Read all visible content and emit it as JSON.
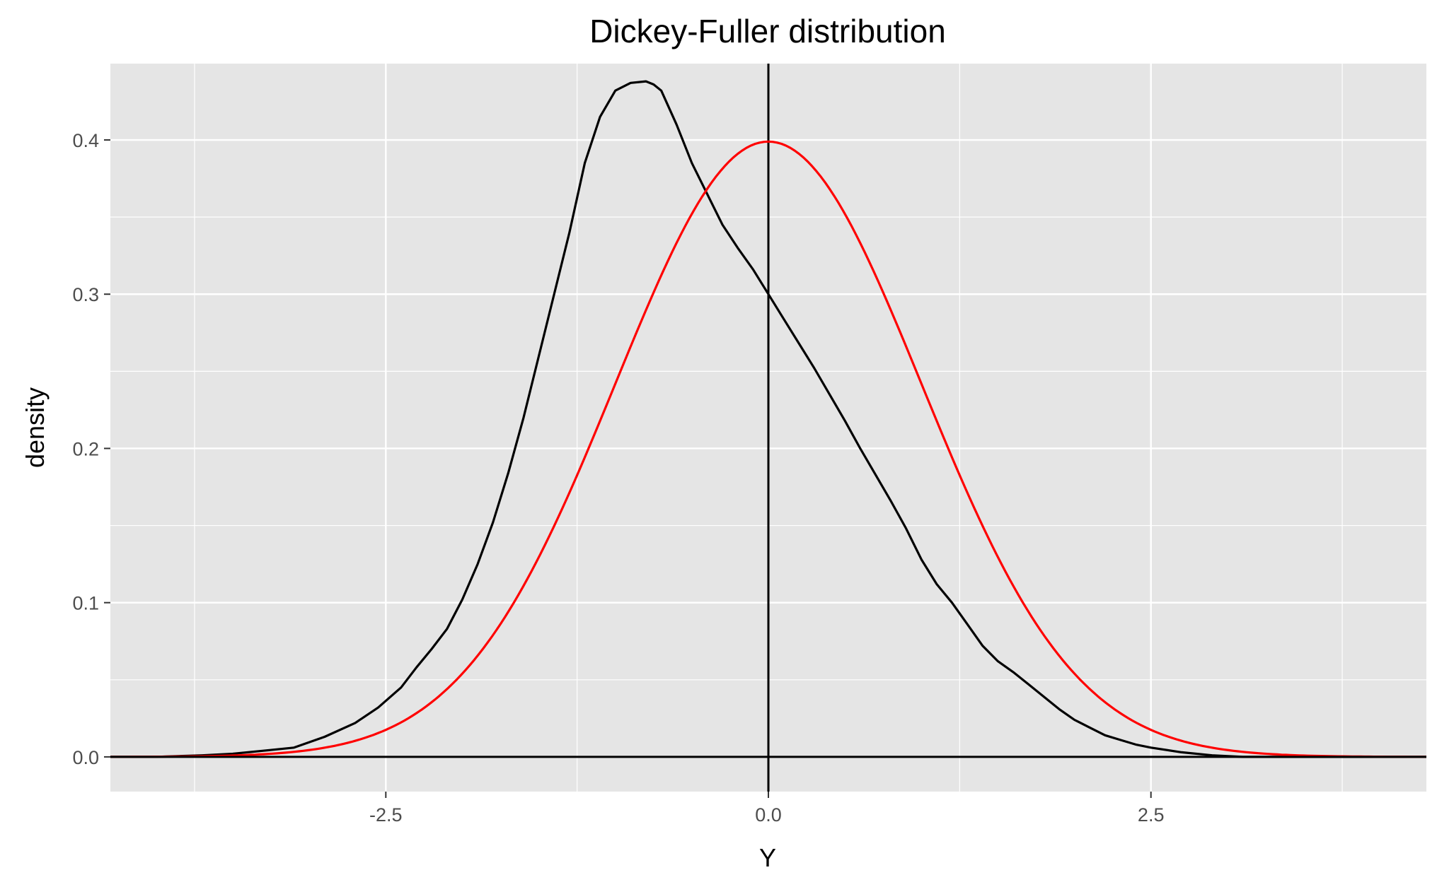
{
  "chart_data": {
    "type": "line",
    "title": "Dickey-Fuller distribution",
    "xlabel": "Y",
    "ylabel": "density",
    "xlim": [
      -4.3,
      4.3
    ],
    "ylim": [
      -0.0225,
      0.4495
    ],
    "x_ticks": [
      {
        "value": -2.5,
        "label": "-2.5"
      },
      {
        "value": 0,
        "label": "0.0"
      },
      {
        "value": 2.5,
        "label": "2.5"
      }
    ],
    "y_ticks": [
      {
        "value": 0,
        "label": "0.0"
      },
      {
        "value": 0.1,
        "label": "0.1"
      },
      {
        "value": 0.2,
        "label": "0.2"
      },
      {
        "value": 0.3,
        "label": "0.3"
      },
      {
        "value": 0.4,
        "label": "0.4"
      }
    ],
    "minor_x": [
      -3.75,
      -1.25,
      1.25,
      3.75
    ],
    "minor_y": [
      0.05,
      0.15,
      0.25,
      0.35,
      0.45
    ],
    "grid": true,
    "legend": "none",
    "colors": {
      "panel": "#e5e5e5",
      "grid": "#ffffff",
      "empirical": "#000000",
      "normal": "#ff0000"
    },
    "vline_x": 0,
    "hline_y": 0,
    "series": [
      {
        "color": "#000000",
        "x": [
          -4.3,
          -4.0,
          -3.7,
          -3.5,
          -3.3,
          -3.1,
          -2.9,
          -2.7,
          -2.55,
          -2.4,
          -2.3,
          -2.2,
          -2.1,
          -2.0,
          -1.9,
          -1.8,
          -1.7,
          -1.6,
          -1.5,
          -1.4,
          -1.3,
          -1.2,
          -1.1,
          -1.0,
          -0.9,
          -0.8,
          -0.75,
          -0.7,
          -0.6,
          -0.5,
          -0.4,
          -0.3,
          -0.2,
          -0.1,
          0.0,
          0.1,
          0.2,
          0.3,
          0.4,
          0.5,
          0.6,
          0.7,
          0.8,
          0.9,
          1.0,
          1.1,
          1.2,
          1.3,
          1.4,
          1.5,
          1.6,
          1.7,
          1.8,
          1.9,
          2.0,
          2.1,
          2.2,
          2.3,
          2.4,
          2.5,
          2.7,
          2.9,
          3.1,
          3.4,
          3.7,
          4.0,
          4.3
        ],
        "y": [
          0.0,
          0.0,
          0.001,
          0.002,
          0.004,
          0.006,
          0.013,
          0.022,
          0.032,
          0.045,
          0.058,
          0.07,
          0.083,
          0.102,
          0.125,
          0.152,
          0.184,
          0.22,
          0.26,
          0.3,
          0.34,
          0.385,
          0.415,
          0.432,
          0.437,
          0.438,
          0.436,
          0.432,
          0.41,
          0.385,
          0.365,
          0.345,
          0.33,
          0.316,
          0.3,
          0.284,
          0.268,
          0.252,
          0.235,
          0.218,
          0.2,
          0.183,
          0.166,
          0.148,
          0.128,
          0.112,
          0.1,
          0.086,
          0.072,
          0.062,
          0.055,
          0.047,
          0.039,
          0.031,
          0.024,
          0.019,
          0.014,
          0.011,
          0.008,
          0.006,
          0.003,
          0.001,
          0.0,
          0.0,
          0.0,
          0.0,
          0.0
        ]
      },
      {
        "color": "#ff0000",
        "function": "normal_pdf",
        "mean": 0,
        "sd": 1
      }
    ]
  }
}
